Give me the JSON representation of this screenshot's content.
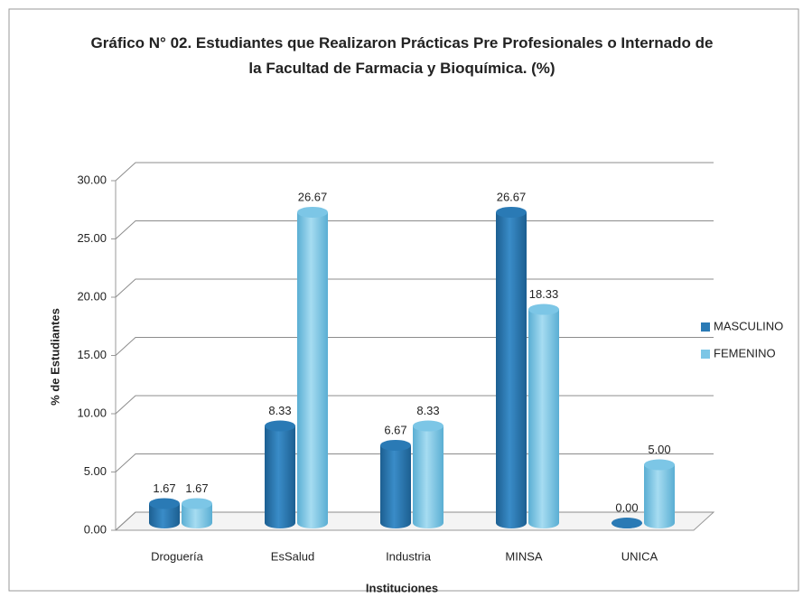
{
  "chart_data": {
    "type": "bar3d",
    "title": "Gráfico N° 02. Estudiantes que Realizaron Prácticas Pre Profesionales o Internado de la Facultad de Farmacia y Bioquímica. (%)",
    "x_label": "Instituciones",
    "y_label": "% de Estudiantes",
    "categories": [
      "Droguería",
      "EsSalud",
      "Industria",
      "MINSA",
      "UNICA"
    ],
    "series": [
      {
        "name": "MASCULINO",
        "color": "#2a7ab5",
        "values": [
          1.67,
          8.33,
          6.67,
          26.67,
          0
        ],
        "value_labels": [
          "1.67",
          "8.33",
          "6.67",
          "26.67",
          "0.00"
        ]
      },
      {
        "name": "FEMENINO",
        "color": "#7cc6e6",
        "values": [
          1.67,
          26.67,
          8.33,
          18.33,
          5
        ],
        "value_labels": [
          "1.67",
          "26.67",
          "8.33",
          "18.33",
          "5.00"
        ]
      }
    ],
    "ylim": [
      0,
      30
    ],
    "yticks": [
      {
        "value": 0,
        "label": "0.00"
      },
      {
        "value": 5,
        "label": "5.00"
      },
      {
        "value": 10,
        "label": "10.00"
      },
      {
        "value": 15,
        "label": "15.00"
      },
      {
        "value": 20,
        "label": "20.00"
      },
      {
        "value": 25,
        "label": "25.00"
      },
      {
        "value": 30,
        "label": "30.00"
      }
    ],
    "grid": true,
    "legend": "right"
  }
}
